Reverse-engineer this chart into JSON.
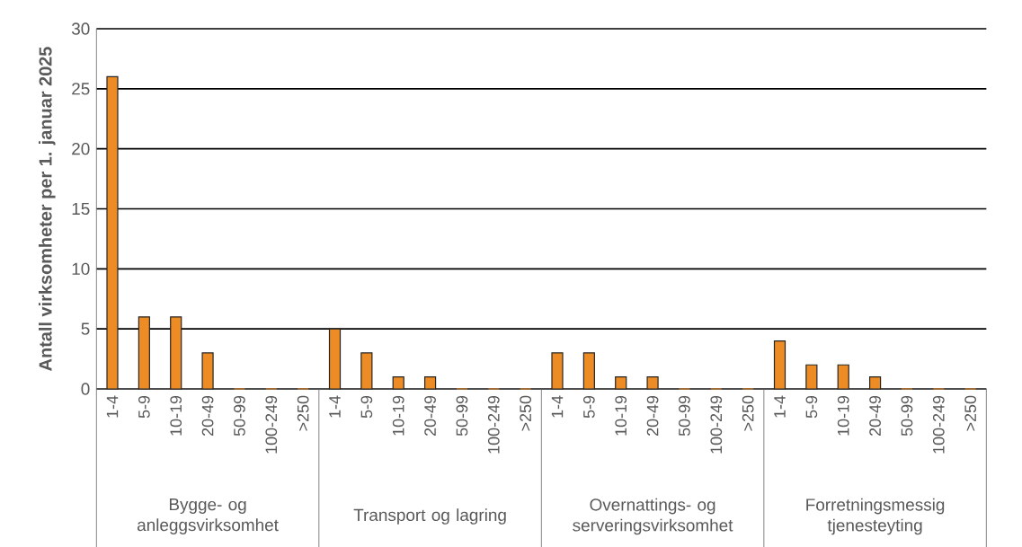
{
  "chart_data": {
    "type": "bar",
    "ylabel": "Antall virksomheter per 1. januar 2025",
    "categories": [
      "1-4",
      "5-9",
      "10-19",
      "20-49",
      "50-99",
      "100-249",
      ">250",
      "1-4",
      "5-9",
      "10-19",
      "20-49",
      "50-99",
      "100-249",
      ">250",
      "1-4",
      "5-9",
      "10-19",
      "20-49",
      "50-99",
      "100-249",
      ">250",
      "1-4",
      "5-9",
      "10-19",
      "20-49",
      "50-99",
      "100-249",
      ">250"
    ],
    "values": [
      26,
      6,
      6,
      3,
      0,
      0,
      0,
      5,
      3,
      1,
      1,
      0,
      0,
      0,
      3,
      3,
      1,
      1,
      0,
      0,
      0,
      4,
      2,
      2,
      1,
      0,
      0,
      0
    ],
    "color": "#ed8b24",
    "ylim": [
      0,
      30
    ],
    "yticks": [
      0,
      5,
      10,
      15,
      20,
      25,
      30
    ],
    "grid": "y",
    "annotations": [
      "Bygge- og anleggsvirksomhet",
      "Transport og lagring",
      "Overnattings- og serveringsvirksomhet",
      "Forretningsmessig tjenesteyting"
    ]
  }
}
